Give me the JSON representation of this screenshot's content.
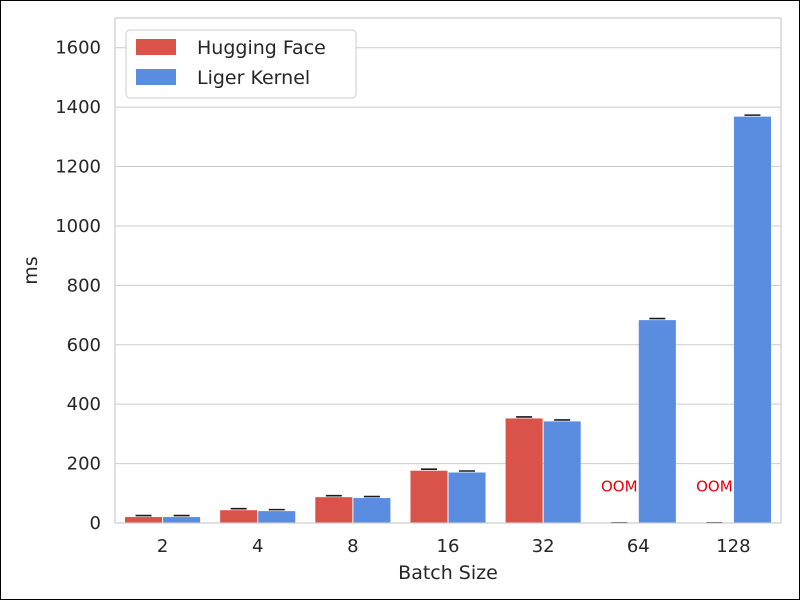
{
  "chart_data": {
    "type": "bar",
    "title": "",
    "xlabel": "Batch Size",
    "ylabel": "ms",
    "categories": [
      "2",
      "4",
      "8",
      "16",
      "32",
      "64",
      "128"
    ],
    "ylim": [
      0,
      1700
    ],
    "yticks": [
      0,
      200,
      400,
      600,
      800,
      1000,
      1200,
      1400,
      1600
    ],
    "grid": true,
    "legend_position": "top-left",
    "series": [
      {
        "name": "Hugging Face",
        "color": "#d9534a",
        "values": [
          20,
          43,
          87,
          176,
          352,
          null,
          null
        ],
        "annotations": [
          "",
          "",
          "",
          "",
          "",
          "OOM",
          "OOM"
        ]
      },
      {
        "name": "Liger Kernel",
        "color": "#5a8de0",
        "values": [
          20,
          40,
          84,
          170,
          342,
          683,
          1368
        ],
        "annotations": [
          "",
          "",
          "",
          "",
          "",
          "",
          ""
        ]
      }
    ],
    "annotation_color": "#e8000b"
  }
}
